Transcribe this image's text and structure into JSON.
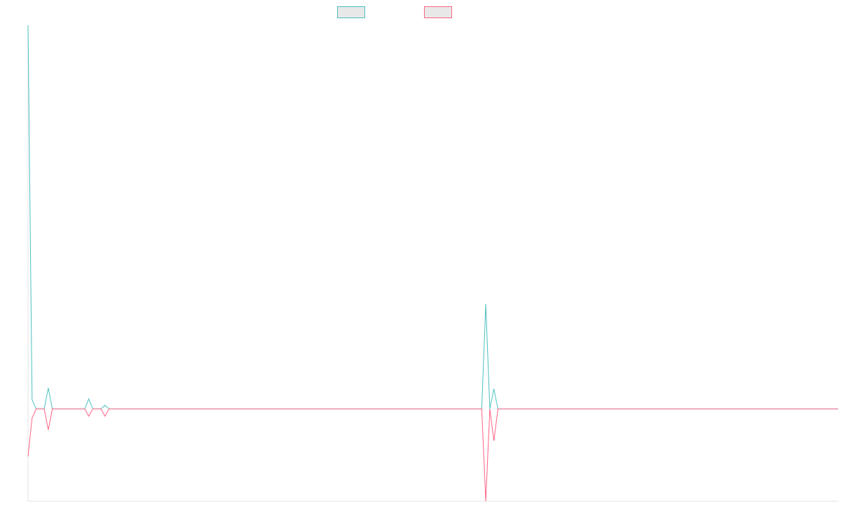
{
  "chart_data": {
    "type": "line",
    "title": "",
    "xlabel": "",
    "ylabel": "",
    "grid": false,
    "legend_placement": "top-center",
    "x": [
      0,
      1,
      2,
      3,
      4,
      5,
      6,
      7,
      8,
      9,
      10,
      11,
      12,
      13,
      14,
      15,
      16,
      17,
      18,
      19,
      20,
      21,
      22,
      23,
      24,
      25,
      26,
      27,
      28,
      29,
      30,
      31,
      32,
      33,
      34,
      35,
      36,
      37,
      38,
      39,
      40,
      41,
      42,
      43,
      44,
      45,
      46,
      47,
      48,
      49,
      50,
      51,
      52,
      53,
      54,
      55,
      56,
      57,
      58,
      59,
      60,
      61,
      62,
      63,
      64,
      65,
      66,
      67,
      68,
      69,
      70,
      71,
      72,
      73,
      74,
      75,
      76,
      77,
      78,
      79,
      80,
      81,
      82,
      83,
      84,
      85,
      86,
      87,
      88,
      89,
      90,
      91,
      92,
      93,
      94,
      95,
      96,
      97,
      98,
      99,
      100,
      101,
      102,
      103,
      104,
      105,
      106,
      107,
      108,
      109,
      110,
      111,
      112,
      113,
      114,
      115,
      116,
      117,
      118,
      119,
      120,
      121,
      122,
      123,
      124,
      125,
      126,
      127,
      128,
      129,
      130,
      131,
      132,
      133,
      134,
      135,
      136,
      137,
      138,
      139,
      140,
      141,
      142,
      143,
      144,
      145,
      146,
      147,
      148,
      149,
      150,
      151,
      152,
      153,
      154,
      155,
      156,
      157,
      158,
      159,
      160,
      161,
      162,
      163,
      164,
      165,
      166,
      167,
      168,
      169,
      170,
      171,
      172,
      173,
      174,
      175,
      176,
      177,
      178,
      179,
      180,
      181,
      182,
      183,
      184,
      185,
      186,
      187,
      188,
      189,
      190,
      191,
      192,
      193,
      194,
      195,
      196,
      197,
      198,
      199,
      200
    ],
    "series": [
      {
        "color": "#4bc0c0",
        "fill": "#e8e8e8",
        "values": [
          420,
          10,
          0,
          0,
          0,
          23,
          0,
          0,
          0,
          0,
          0,
          0,
          0,
          0,
          0,
          11,
          0,
          0,
          0,
          4,
          0,
          0,
          0,
          0,
          0,
          0,
          0,
          0,
          0,
          0,
          0,
          0,
          0,
          0,
          0,
          0,
          0,
          0,
          0,
          0,
          0,
          0,
          0,
          0,
          0,
          0,
          0,
          0,
          0,
          0,
          0,
          0,
          0,
          0,
          0,
          0,
          0,
          0,
          0,
          0,
          0,
          0,
          0,
          0,
          0,
          0,
          0,
          0,
          0,
          0,
          0,
          0,
          0,
          0,
          0,
          0,
          0,
          0,
          0,
          0,
          0,
          0,
          0,
          0,
          0,
          0,
          0,
          0,
          0,
          0,
          0,
          0,
          0,
          0,
          0,
          0,
          0,
          0,
          0,
          0,
          0,
          0,
          0,
          0,
          0,
          0,
          0,
          0,
          0,
          0,
          0,
          0,
          0,
          115,
          0,
          22,
          0,
          0,
          0,
          0,
          0,
          0,
          0,
          0,
          0,
          0,
          0,
          0,
          0,
          0,
          0,
          0,
          0,
          0,
          0,
          0,
          0,
          0,
          0,
          0,
          0,
          0,
          0,
          0,
          0,
          0,
          0,
          0,
          0,
          0,
          0,
          0,
          0,
          0,
          0,
          0,
          0,
          0,
          0,
          0,
          0,
          0,
          0,
          0,
          0,
          0,
          0,
          0,
          0,
          0,
          0,
          0,
          0,
          0,
          0,
          0,
          0,
          0,
          0,
          0,
          0,
          0,
          0,
          0,
          0,
          0,
          0,
          0,
          0,
          0,
          0,
          0,
          0,
          0,
          0,
          0,
          0,
          0,
          0,
          0,
          0
        ]
      },
      {
        "color": "#ff6384",
        "fill": "#e8e8e8",
        "values": [
          -52,
          -10,
          0,
          0,
          0,
          -23,
          0,
          0,
          0,
          0,
          0,
          0,
          0,
          0,
          0,
          -8,
          0,
          0,
          0,
          -8,
          0,
          0,
          0,
          0,
          0,
          0,
          0,
          0,
          0,
          0,
          0,
          0,
          0,
          0,
          0,
          0,
          0,
          0,
          0,
          0,
          0,
          0,
          0,
          0,
          0,
          0,
          0,
          0,
          0,
          0,
          0,
          0,
          0,
          0,
          0,
          0,
          0,
          0,
          0,
          0,
          0,
          0,
          0,
          0,
          0,
          0,
          0,
          0,
          0,
          0,
          0,
          0,
          0,
          0,
          0,
          0,
          0,
          0,
          0,
          0,
          0,
          0,
          0,
          0,
          0,
          0,
          0,
          0,
          0,
          0,
          0,
          0,
          0,
          0,
          0,
          0,
          0,
          0,
          0,
          0,
          0,
          0,
          0,
          0,
          0,
          0,
          0,
          0,
          0,
          0,
          0,
          0,
          0,
          -101,
          0,
          -35,
          0,
          0,
          0,
          0,
          0,
          0,
          0,
          0,
          0,
          0,
          0,
          0,
          0,
          0,
          0,
          0,
          0,
          0,
          0,
          0,
          0,
          0,
          0,
          0,
          0,
          0,
          0,
          0,
          0,
          0,
          0,
          0,
          0,
          0,
          0,
          0,
          0,
          0,
          0,
          0,
          0,
          0,
          0,
          0,
          0,
          0,
          0,
          0,
          0,
          0,
          0,
          0,
          0,
          0,
          0,
          0,
          0,
          0,
          0,
          0,
          0,
          0,
          0,
          0,
          0,
          0,
          0,
          0,
          0,
          0,
          0,
          0,
          0,
          0,
          0,
          0,
          0,
          0,
          0,
          0,
          0,
          0,
          0,
          0,
          0
        ]
      }
    ],
    "xlim": [
      0,
      200
    ],
    "ylim": [
      -101,
      420
    ]
  }
}
